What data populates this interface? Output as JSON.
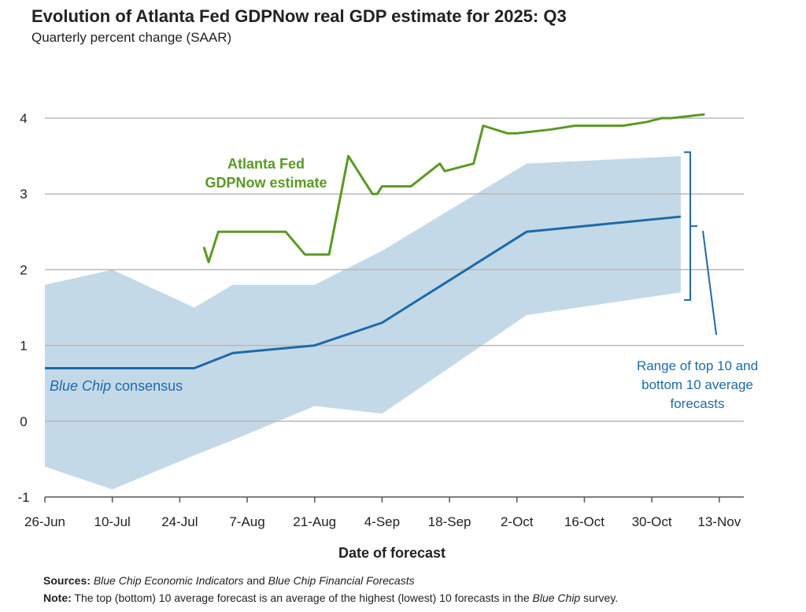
{
  "title": "Evolution of Atlanta Fed GDPNow real GDP estimate for 2025: Q3",
  "subtitle": "Quarterly percent change (SAAR)",
  "colors": {
    "gdpnow": "#5a9a22",
    "consensus": "#1e6aa8",
    "range": "#c4d9e8",
    "grid": "#b8b8b8",
    "text": "#222222"
  },
  "chart_data": {
    "type": "line",
    "xlabel": "Date of forecast",
    "ylabel": "",
    "x_ticks": [
      "26-Jun",
      "10-Jul",
      "24-Jul",
      "7-Aug",
      "21-Aug",
      "4-Sep",
      "18-Sep",
      "2-Oct",
      "16-Oct",
      "30-Oct",
      "13-Nov"
    ],
    "y_ticks": [
      -1,
      0,
      1,
      2,
      3,
      4
    ],
    "ylim": [
      -1,
      4.25
    ],
    "grid": "horizontal",
    "x_axis_origin": "26-Jun",
    "series": [
      {
        "name": "Atlanta Fed GDPNow estimate",
        "label_lines": [
          "Atlanta Fed",
          "GDPNow estimate"
        ],
        "style": "line",
        "points": [
          [
            "29-Jul",
            2.3
          ],
          [
            "30-Jul",
            2.1
          ],
          [
            "1-Aug",
            2.5
          ],
          [
            "4-Aug",
            2.5
          ],
          [
            "7-Aug",
            2.5
          ],
          [
            "15-Aug",
            2.5
          ],
          [
            "19-Aug",
            2.2
          ],
          [
            "24-Aug",
            2.2
          ],
          [
            "28-Aug",
            3.5
          ],
          [
            "2-Sep",
            3.0
          ],
          [
            "3-Sep",
            3.0
          ],
          [
            "4-Sep",
            3.1
          ],
          [
            "10-Sep",
            3.1
          ],
          [
            "16-Sep",
            3.4
          ],
          [
            "17-Sep",
            3.3
          ],
          [
            "23-Sep",
            3.4
          ],
          [
            "25-Sep",
            3.9
          ],
          [
            "30-Sep",
            3.8
          ],
          [
            "2-Oct",
            3.8
          ],
          [
            "9-Oct",
            3.85
          ],
          [
            "14-Oct",
            3.9
          ],
          [
            "21-Oct",
            3.9
          ],
          [
            "24-Oct",
            3.9
          ],
          [
            "29-Oct",
            3.95
          ],
          [
            "1-Nov",
            4.0
          ],
          [
            "3-Nov",
            4.0
          ],
          [
            "10-Nov",
            4.05
          ]
        ]
      },
      {
        "name": "Blue Chip consensus",
        "label_italic": "Blue Chip",
        "label_rest": " consensus",
        "style": "line",
        "points": [
          [
            "26-Jun",
            0.7
          ],
          [
            "10-Jul",
            0.7
          ],
          [
            "27-Jul",
            0.7
          ],
          [
            "4-Aug",
            0.9
          ],
          [
            "21-Aug",
            1.0
          ],
          [
            "4-Sep",
            1.3
          ],
          [
            "4-Oct",
            2.5
          ],
          [
            "5-Nov",
            2.7
          ]
        ]
      },
      {
        "name": "Range of top 10 and bottom 10 average forecasts",
        "label_lines": [
          "Range of top 10 and",
          "bottom 10 average",
          "forecasts"
        ],
        "style": "band",
        "upper": [
          [
            "26-Jun",
            1.8
          ],
          [
            "10-Jul",
            2.0
          ],
          [
            "27-Jul",
            1.5
          ],
          [
            "4-Aug",
            1.8
          ],
          [
            "21-Aug",
            1.8
          ],
          [
            "4-Sep",
            2.25
          ],
          [
            "4-Oct",
            3.4
          ],
          [
            "5-Nov",
            3.5
          ]
        ],
        "lower": [
          [
            "26-Jun",
            -0.6
          ],
          [
            "10-Jul",
            -0.9
          ],
          [
            "27-Jul",
            -0.45
          ],
          [
            "4-Aug",
            -0.25
          ],
          [
            "21-Aug",
            0.2
          ],
          [
            "4-Sep",
            0.1
          ],
          [
            "4-Oct",
            1.4
          ],
          [
            "5-Nov",
            1.7
          ]
        ]
      }
    ]
  },
  "sources_label": "Sources:",
  "sources_italic_1": "Blue Chip Economic Indicators",
  "sources_and": " and ",
  "sources_italic_2": "Blue Chip Financial Forecasts",
  "note_label": "Note:",
  "note_text_1": " The top (bottom) 10 average forecast is an average of the highest (lowest) 10 forecasts in the ",
  "note_italic": "Blue Chip",
  "note_text_2": " survey."
}
